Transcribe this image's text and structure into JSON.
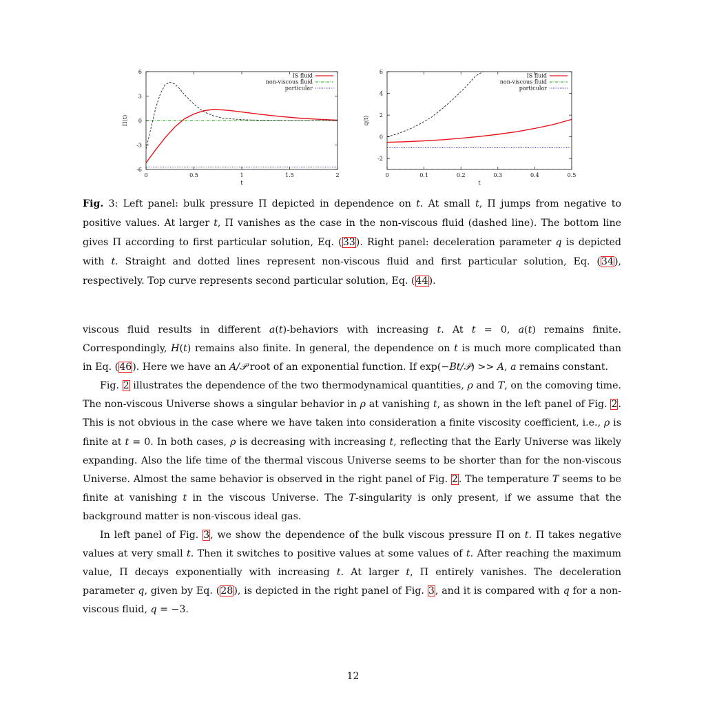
{
  "chart_data": [
    {
      "type": "line",
      "ylabel": "Π(t)",
      "xlabel": "t",
      "xlim": [
        0,
        2
      ],
      "ylim": [
        -6,
        6
      ],
      "xticks": [
        "0",
        "0.5",
        "1",
        "1.5",
        "2"
      ],
      "yticks": [
        "-6",
        "-3",
        "0",
        "3",
        "6"
      ],
      "legend_position": "top-right",
      "series": [
        {
          "name": "IS fluid",
          "color": "#e8141b",
          "style": "solid",
          "x": [
            0,
            0.1,
            0.2,
            0.3,
            0.4,
            0.5,
            0.6,
            0.7,
            0.8,
            0.9,
            1.0,
            1.2,
            1.4,
            1.6,
            1.8,
            2.0
          ],
          "y": [
            -5.2,
            -3.6,
            -2.1,
            -0.8,
            0.2,
            0.8,
            1.2,
            1.35,
            1.3,
            1.2,
            1.05,
            0.75,
            0.5,
            0.3,
            0.15,
            0.05
          ]
        },
        {
          "name": "non-viscous fluid",
          "color": "#1aa01a",
          "style": "dashdot",
          "x": [
            0,
            2
          ],
          "y": [
            0,
            0
          ]
        },
        {
          "name": "particular",
          "color": "#1a1ab0",
          "style": "dotted",
          "x": [
            0,
            2
          ],
          "y": [
            -5.7,
            -5.7
          ]
        },
        {
          "name": "",
          "color": "#222222",
          "style": "dashed",
          "x": [
            0,
            0.05,
            0.1,
            0.15,
            0.2,
            0.25,
            0.3,
            0.35,
            0.4,
            0.5,
            0.6,
            0.7,
            0.8,
            1.0,
            1.2,
            1.5,
            2.0
          ],
          "y": [
            -3.5,
            -1.0,
            1.5,
            3.3,
            4.4,
            4.7,
            4.5,
            3.9,
            3.2,
            2.0,
            1.1,
            0.6,
            0.3,
            0.1,
            0.04,
            0.01,
            0
          ]
        }
      ]
    },
    {
      "type": "line",
      "ylabel": "q(t)",
      "xlabel": "t",
      "xlim": [
        0,
        0.5
      ],
      "ylim": [
        -3,
        6
      ],
      "xticks": [
        "0",
        "0.1",
        "0.2",
        "0.3",
        "0.4",
        "0.5"
      ],
      "yticks": [
        "-2",
        "0",
        "2",
        "4",
        "6"
      ],
      "legend_position": "top-right",
      "series": [
        {
          "name": "IS fluid",
          "color": "#e8141b",
          "style": "solid",
          "x": [
            0,
            0.05,
            0.1,
            0.15,
            0.2,
            0.25,
            0.3,
            0.35,
            0.4,
            0.45,
            0.5
          ],
          "y": [
            -0.5,
            -0.45,
            -0.37,
            -0.27,
            -0.13,
            0.03,
            0.23,
            0.47,
            0.77,
            1.13,
            1.6
          ]
        },
        {
          "name": "non-viscous fluid",
          "color": "#1aa01a",
          "style": "dashdot",
          "x": [
            0,
            0.5
          ],
          "y": [
            -3,
            -3
          ]
        },
        {
          "name": "particular",
          "color": "#1a1ab0",
          "style": "dotted",
          "x": [
            0,
            0.5
          ],
          "y": [
            -1,
            -1
          ]
        },
        {
          "name": "",
          "color": "#222222",
          "style": "dashed",
          "x": [
            0,
            0.03,
            0.06,
            0.09,
            0.12,
            0.15,
            0.18,
            0.21,
            0.24,
            0.26
          ],
          "y": [
            0.0,
            0.3,
            0.7,
            1.2,
            1.8,
            2.6,
            3.5,
            4.5,
            5.6,
            6.0
          ]
        }
      ]
    }
  ],
  "caption": {
    "label": "Fig.",
    "segments": [
      {
        "t": " 3: Left panel: bulk pressure Π depicted in dependence on "
      },
      {
        "t": "t",
        "m": true
      },
      {
        "t": ". At small "
      },
      {
        "t": "t",
        "m": true
      },
      {
        "t": ", Π jumps from negative to positive values. At larger "
      },
      {
        "t": "t",
        "m": true
      },
      {
        "t": ", Π vanishes as the case in the non-viscous fluid (dashed line). The bottom line gives Π according to first particular solution, Eq. ("
      },
      {
        "t": "33",
        "r": true
      },
      {
        "t": "). Right panel: deceleration parameter "
      },
      {
        "t": "q",
        "m": true
      },
      {
        "t": " is depicted with "
      },
      {
        "t": "t",
        "m": true
      },
      {
        "t": ". Straight and dotted lines represent non-viscous fluid and first particular solution, Eq. ("
      },
      {
        "t": "34",
        "r": true
      },
      {
        "t": "), respectively. Top curve represents second particular solution, Eq. ("
      },
      {
        "t": "44",
        "r": true
      },
      {
        "t": ")."
      }
    ]
  },
  "paragraphs": [
    {
      "first": true,
      "segments": [
        {
          "t": "viscous fluid results in different "
        },
        {
          "t": "a",
          "m": true
        },
        {
          "t": "("
        },
        {
          "t": "t",
          "m": true
        },
        {
          "t": ")-behaviors with increasing "
        },
        {
          "t": "t",
          "m": true
        },
        {
          "t": ". At "
        },
        {
          "t": "t",
          "m": true
        },
        {
          "t": " = 0, "
        },
        {
          "t": "a",
          "m": true
        },
        {
          "t": "("
        },
        {
          "t": "t",
          "m": true
        },
        {
          "t": ") remains finite. Correspondingly, "
        },
        {
          "t": "H",
          "m": true
        },
        {
          "t": "("
        },
        {
          "t": "t",
          "m": true
        },
        {
          "t": ") remains also finite. In general, the dependence on "
        },
        {
          "t": "t",
          "m": true
        },
        {
          "t": " is much more complicated than in Eq. ("
        },
        {
          "t": "46",
          "r": true
        },
        {
          "t": "). Here we have an "
        },
        {
          "t": "A/𝒫",
          "m": true
        },
        {
          "t": " root of an exponential function. If exp(−"
        },
        {
          "t": "Bt/𝒫",
          "m": true
        },
        {
          "t": ") >> "
        },
        {
          "t": "A",
          "m": true
        },
        {
          "t": ", "
        },
        {
          "t": "a",
          "m": true
        },
        {
          "t": " remains constant."
        }
      ]
    },
    {
      "segments": [
        {
          "t": "Fig. "
        },
        {
          "t": "2",
          "r": true
        },
        {
          "t": " illustrates the dependence of the two thermodynamical quantities, "
        },
        {
          "t": "ρ",
          "m": true
        },
        {
          "t": " and "
        },
        {
          "t": "T",
          "m": true
        },
        {
          "t": ", on the comoving time. The non-viscous Universe shows a singular behavior in "
        },
        {
          "t": "ρ",
          "m": true
        },
        {
          "t": " at vanishing "
        },
        {
          "t": "t",
          "m": true
        },
        {
          "t": ", as shown in the left panel of Fig. "
        },
        {
          "t": "2",
          "r": true
        },
        {
          "t": ". This is not obvious in the case where we have taken into consideration a finite viscosity coefficient, i.e., "
        },
        {
          "t": "ρ",
          "m": true
        },
        {
          "t": " is finite at "
        },
        {
          "t": "t",
          "m": true
        },
        {
          "t": " = 0. In both cases, "
        },
        {
          "t": "ρ",
          "m": true
        },
        {
          "t": " is decreasing with increasing "
        },
        {
          "t": "t",
          "m": true
        },
        {
          "t": ", reflecting that the Early Universe was likely expanding. Also the life time of the thermal viscous Universe seems to be shorter than for the non-viscous Universe. Almost the same behavior is observed in the right panel of Fig. "
        },
        {
          "t": "2",
          "r": true
        },
        {
          "t": ". The temperature "
        },
        {
          "t": "T",
          "m": true
        },
        {
          "t": " seems to be finite at vanishing "
        },
        {
          "t": "t",
          "m": true
        },
        {
          "t": " in the viscous Universe. The "
        },
        {
          "t": "T",
          "m": true
        },
        {
          "t": "-singularity is only present, if we assume that the background matter is non-viscous ideal gas."
        }
      ]
    },
    {
      "segments": [
        {
          "t": "In left panel of Fig. "
        },
        {
          "t": "3",
          "r": true
        },
        {
          "t": ", we show the dependence of the bulk viscous pressure Π on "
        },
        {
          "t": "t",
          "m": true
        },
        {
          "t": ". Π takes negative values at very small "
        },
        {
          "t": "t",
          "m": true
        },
        {
          "t": ". Then it switches to positive values at some values of "
        },
        {
          "t": "t",
          "m": true
        },
        {
          "t": ". After reaching the maximum value, Π decays exponentially with increasing "
        },
        {
          "t": "t",
          "m": true
        },
        {
          "t": ". At larger "
        },
        {
          "t": "t",
          "m": true
        },
        {
          "t": ", Π entirely vanishes. The deceleration parameter "
        },
        {
          "t": "q",
          "m": true
        },
        {
          "t": ", given by Eq. ("
        },
        {
          "t": "28",
          "r": true
        },
        {
          "t": "), is depicted in the right panel of Fig. "
        },
        {
          "t": "3",
          "r": true
        },
        {
          "t": ", and it is compared with "
        },
        {
          "t": "q",
          "m": true
        },
        {
          "t": " for a non-viscous fluid, "
        },
        {
          "t": "q",
          "m": true
        },
        {
          "t": " = −3."
        }
      ]
    }
  ],
  "page_number": "12"
}
